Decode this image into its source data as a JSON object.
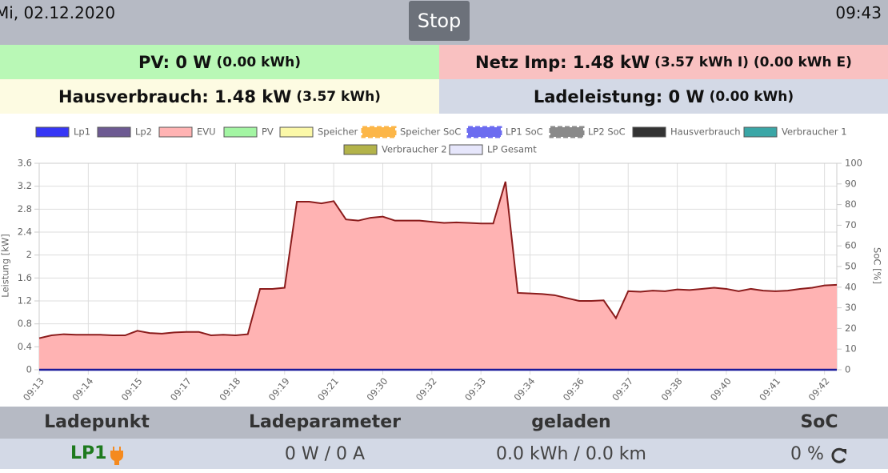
{
  "header": {
    "date": "Mi, 02.12.2020",
    "button": "Stop",
    "time": "09:43"
  },
  "status": {
    "pv": {
      "main": "PV: 0 W",
      "detail": "(0.00 kWh)"
    },
    "grid": {
      "main": "Netz Imp: 1.48 kW",
      "detail": "(3.57 kWh I) (0.00 kWh E)"
    },
    "house": {
      "main": "Hausverbrauch: 1.48 kW",
      "detail": "(3.57 kWh)"
    },
    "charge": {
      "main": "Ladeleistung: 0 W",
      "detail": "(0.00 kWh)"
    }
  },
  "chart_data": {
    "type": "area",
    "ylabel": "Leistung [kW]",
    "y2label": "SoC [%]",
    "categories": [
      "09:13",
      null,
      null,
      null,
      "09:14",
      null,
      null,
      null,
      "09:15",
      null,
      null,
      null,
      "09:17",
      null,
      null,
      null,
      "09:18",
      null,
      null,
      null,
      "09:19",
      null,
      null,
      null,
      "09:21",
      null,
      null,
      null,
      "09:30",
      null,
      null,
      null,
      "09:32",
      null,
      null,
      null,
      "09:33",
      null,
      null,
      null,
      "09:34",
      null,
      null,
      null,
      "09:36",
      null,
      null,
      null,
      "09:37",
      null,
      null,
      null,
      "09:38",
      null,
      null,
      null,
      "09:40",
      null,
      null,
      null,
      "09:41",
      null,
      null,
      null,
      "09:42",
      null
    ],
    "ylim": [
      0,
      3.6
    ],
    "yticks": [
      0,
      0.4,
      0.8,
      1.2,
      1.6,
      2.0,
      2.4,
      2.8,
      3.2,
      3.6
    ],
    "y2lim": [
      0,
      100
    ],
    "y2ticks": [
      0,
      10,
      20,
      30,
      40,
      50,
      60,
      70,
      80,
      90,
      100
    ],
    "grid": true,
    "series": [
      {
        "name": "Lp1",
        "color": "#3636f5",
        "values": [
          0,
          0,
          0,
          0,
          0,
          0,
          0,
          0,
          0,
          0,
          0,
          0,
          0,
          0,
          0,
          0,
          0,
          0,
          0,
          0,
          0,
          0,
          0,
          0,
          0,
          0,
          0,
          0,
          0,
          0,
          0,
          0,
          0,
          0,
          0,
          0,
          0,
          0,
          0,
          0,
          0,
          0,
          0,
          0,
          0,
          0,
          0,
          0,
          0,
          0,
          0,
          0,
          0,
          0,
          0,
          0,
          0,
          0,
          0,
          0,
          0,
          0,
          0,
          0,
          0,
          0
        ]
      },
      {
        "name": "Lp2",
        "color": "#6d5a92"
      },
      {
        "name": "EVU",
        "color": "#ffb3b3",
        "values": [
          0.55,
          0.6,
          0.62,
          0.61,
          0.61,
          0.61,
          0.6,
          0.6,
          0.68,
          0.64,
          0.63,
          0.65,
          0.66,
          0.66,
          0.6,
          0.61,
          0.6,
          0.62,
          1.41,
          1.41,
          1.43,
          2.93,
          2.93,
          2.9,
          2.94,
          2.62,
          2.6,
          2.65,
          2.67,
          2.6,
          2.6,
          2.6,
          2.58,
          2.56,
          2.57,
          2.56,
          2.55,
          2.55,
          3.28,
          1.34,
          1.33,
          1.32,
          1.3,
          1.25,
          1.2,
          1.2,
          1.21,
          0.9,
          1.37,
          1.36,
          1.38,
          1.37,
          1.4,
          1.39,
          1.41,
          1.43,
          1.41,
          1.37,
          1.41,
          1.38,
          1.37,
          1.38,
          1.41,
          1.43,
          1.47,
          1.48
        ]
      },
      {
        "name": "PV",
        "color": "#a3f5a3"
      },
      {
        "name": "Speicher",
        "color": "#fbf8a8"
      },
      {
        "name": "Speicher SoC",
        "color": "#fcb648",
        "dashed": true
      },
      {
        "name": "LP1 SoC",
        "color": "#6c6cf0",
        "dashed": true
      },
      {
        "name": "LP2 SoC",
        "color": "#8a8a8a",
        "dashed": true
      },
      {
        "name": "Hausverbrauch",
        "color": "#333333"
      },
      {
        "name": "Verbraucher 1",
        "color": "#3aa6a6"
      },
      {
        "name": "Verbraucher 2",
        "color": "#b3b34a"
      },
      {
        "name": "LP Gesamt",
        "color": "#e6e6fb"
      }
    ]
  },
  "table": {
    "headers": [
      "Ladepunkt",
      "Ladeparameter",
      "geladen",
      "SoC"
    ],
    "rows": [
      [
        "LP1",
        "0 W / 0 A",
        "0.0 kWh / 0.0 km",
        "0 %"
      ]
    ]
  }
}
